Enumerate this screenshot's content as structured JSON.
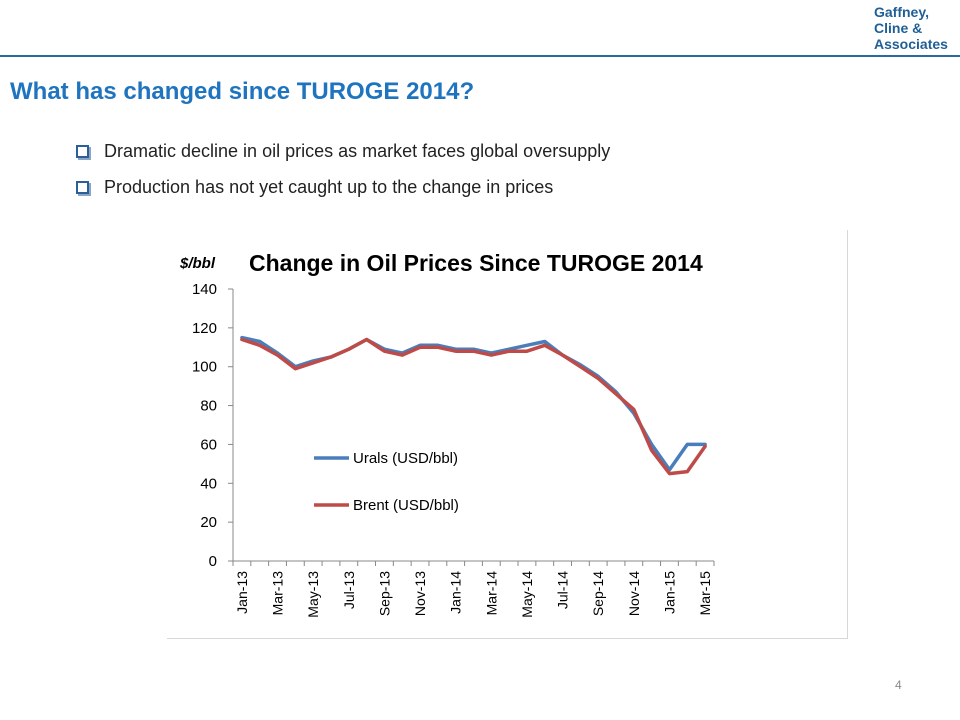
{
  "logo": {
    "lines": [
      "Gaffney,",
      "Cline &",
      "Associates"
    ]
  },
  "slide": {
    "title": "What has changed since TUROGE 2014?",
    "bullets": [
      "Dramatic decline in oil prices as market faces global oversupply",
      "Production has not yet caught up to the change in prices"
    ],
    "page_number": "4"
  },
  "colors": {
    "title": "#1f74bf",
    "rule": "#2a6a9c",
    "urals": "#4a7ebb",
    "brent": "#be4b48"
  },
  "chart_data": {
    "type": "line",
    "title": "Change in Oil Prices Since TUROGE 2014",
    "ylabel": "$/bbl",
    "xlabel": "",
    "ylim": [
      0,
      140
    ],
    "yticks": [
      0,
      20,
      40,
      60,
      80,
      100,
      120,
      140
    ],
    "legend_position": "lower-left inside plot",
    "grid": false,
    "x": [
      "Jan-13",
      "Feb-13",
      "Mar-13",
      "Apr-13",
      "May-13",
      "Jun-13",
      "Jul-13",
      "Aug-13",
      "Sep-13",
      "Oct-13",
      "Nov-13",
      "Dec-13",
      "Jan-14",
      "Feb-14",
      "Mar-14",
      "Apr-14",
      "May-14",
      "Jun-14",
      "Jul-14",
      "Aug-14",
      "Sep-14",
      "Oct-14",
      "Nov-14",
      "Dec-14",
      "Jan-15",
      "Feb-15",
      "Mar-15"
    ],
    "x_tick_labels": [
      "Jan-13",
      "Mar-13",
      "May-13",
      "Jul-13",
      "Sep-13",
      "Nov-13",
      "Jan-14",
      "Mar-14",
      "May-14",
      "Jul-14",
      "Sep-14",
      "Nov-14",
      "Jan-15",
      "Mar-15"
    ],
    "series": [
      {
        "name": "Urals (USD/bbl)",
        "values": [
          115,
          113,
          107,
          100,
          103,
          105,
          109,
          114,
          109,
          107,
          111,
          111,
          109,
          109,
          107,
          109,
          111,
          113,
          106,
          101,
          95,
          87,
          76,
          60,
          47,
          60,
          60
        ]
      },
      {
        "name": "Brent (USD/bbl)",
        "values": [
          114,
          111,
          106,
          99,
          102,
          105,
          109,
          114,
          108,
          106,
          110,
          110,
          108,
          108,
          106,
          108,
          108,
          111,
          106,
          100,
          94,
          86,
          78,
          57,
          45,
          46,
          59
        ]
      }
    ]
  }
}
